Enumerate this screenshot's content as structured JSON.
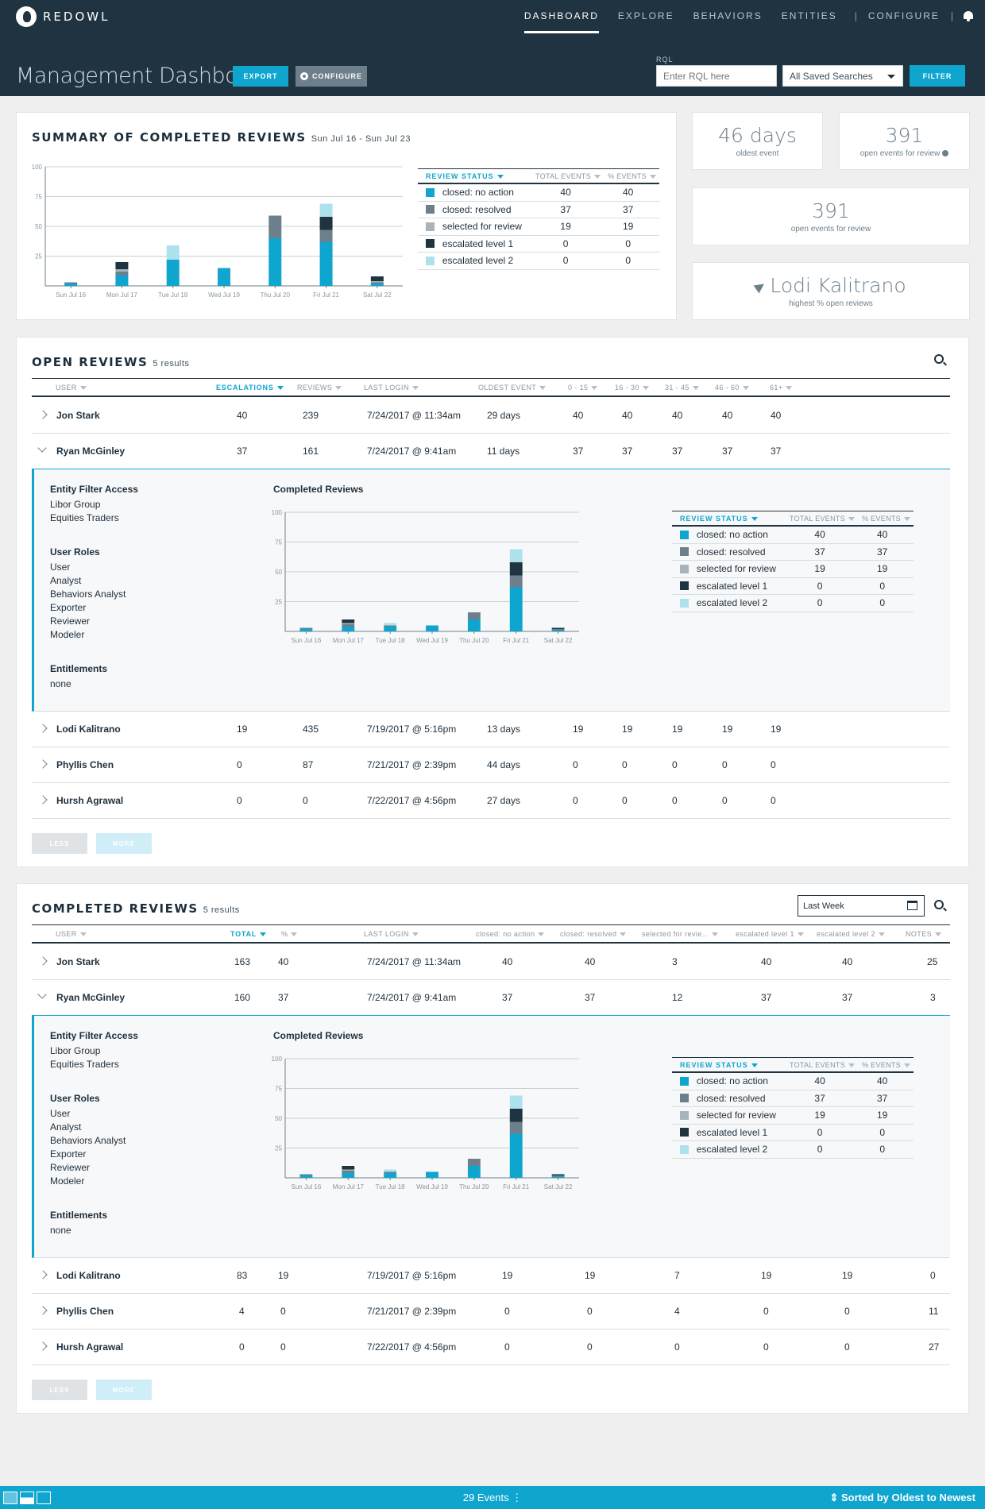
{
  "app": {
    "logo_text": "REDOWL"
  },
  "nav": {
    "dashboard": "DASHBOARD",
    "explore": "EXPLORE",
    "behaviors": "BEHAVIORS",
    "entities": "ENTITIES",
    "separator": "|",
    "configure": "CONFIGURE"
  },
  "header": {
    "title": "Management Dashboard",
    "export_label": "EXPORT",
    "configure_label": "CONFIGURE",
    "rql_label": "RQL",
    "rql_placeholder": "Enter RQL here",
    "saved_searches": "All Saved Searches",
    "filter_label": "FILTER"
  },
  "colors": {
    "brand": "#1f3340",
    "accent": "#0ea5cf"
  },
  "summary": {
    "title": "SUMMARY OF COMPLETED REVIEWS",
    "range": "Sun Jul 16 - Sun Jul 23"
  },
  "stats": {
    "oldest_value": "46 days",
    "oldest_label": "oldest event",
    "open_value": "391",
    "open_label": "open events for review",
    "open2_value": "391",
    "open2_label": "open events for review",
    "top_user": "Lodi Kalitrano",
    "top_user_label": "highest % open reviews"
  },
  "legend": {
    "headers": {
      "status": "REVIEW STATUS",
      "total": "TOTAL EVENTS",
      "pct": "% EVENTS"
    },
    "rows": [
      {
        "label": "closed: no action",
        "total": "40",
        "pct": "40",
        "color": "#0ea5cf"
      },
      {
        "label": "closed: resolved",
        "total": "37",
        "pct": "37",
        "color": "#6d7f8b"
      },
      {
        "label": "selected for review",
        "total": "19",
        "pct": "19",
        "color": "#a9b3ba"
      },
      {
        "label": "escalated level 1",
        "total": "0",
        "pct": "0",
        "color": "#1f3340"
      },
      {
        "label": "escalated level 2",
        "total": "0",
        "pct": "0",
        "color": "#aee1ee"
      }
    ]
  },
  "chart_data": [
    {
      "type": "bar",
      "stacked": true,
      "title": "",
      "categories": [
        "Sun Jul 16",
        "Mon Jul 17",
        "Tue Jul 18",
        "Wed Jul 19",
        "Thu Jul 20",
        "Fri Jul 21",
        "Sat Jul 22"
      ],
      "ylim": [
        0,
        100
      ],
      "yticks": [
        "100",
        "75",
        "50",
        "25"
      ],
      "series": [
        {
          "name": "closed: no action",
          "color": "#0ea5cf",
          "values": [
            2,
            9,
            22,
            15,
            40,
            37,
            2
          ]
        },
        {
          "name": "closed: resolved",
          "color": "#6d7f8b",
          "values": [
            1,
            3,
            0,
            0,
            19,
            10,
            1
          ]
        },
        {
          "name": "selected for review",
          "color": "#a9b3ba",
          "values": [
            0,
            2,
            0,
            0,
            0,
            0,
            1
          ]
        },
        {
          "name": "escalated level 1",
          "color": "#1f3340",
          "values": [
            0,
            6,
            0,
            0,
            0,
            11,
            4
          ]
        },
        {
          "name": "escalated level 2",
          "color": "#aee1ee",
          "values": [
            0,
            0,
            12,
            0,
            0,
            11,
            0
          ]
        }
      ]
    },
    {
      "type": "bar",
      "stacked": true,
      "title": "Completed Reviews",
      "categories": [
        "Sun Jul 16",
        "Mon Jul 17",
        "Tue Jul 18",
        "Wed Jul 19",
        "Thu Jul 20",
        "Fri Jul 21",
        "Sat Jul 22"
      ],
      "ylim": [
        0,
        100
      ],
      "yticks": [
        "100",
        "75",
        "50",
        "25"
      ],
      "series": [
        {
          "name": "closed: no action",
          "color": "#0ea5cf",
          "values": [
            2,
            4,
            4,
            5,
            10,
            37,
            1
          ]
        },
        {
          "name": "closed: resolved",
          "color": "#6d7f8b",
          "values": [
            1,
            2,
            1,
            0,
            6,
            10,
            1
          ]
        },
        {
          "name": "selected for review",
          "color": "#a9b3ba",
          "values": [
            0,
            1,
            0,
            0,
            0,
            0,
            0
          ]
        },
        {
          "name": "escalated level 1",
          "color": "#1f3340",
          "values": [
            0,
            3,
            0,
            0,
            0,
            11,
            1
          ]
        },
        {
          "name": "escalated level 2",
          "color": "#aee1ee",
          "values": [
            0,
            0,
            2,
            0,
            0,
            11,
            0
          ]
        }
      ]
    },
    {
      "type": "bar",
      "stacked": true,
      "title": "Completed Reviews",
      "categories": [
        "Sun Jul 16",
        "Mon Jul 17",
        "Tue Jul 18",
        "Wed Jul 19",
        "Thu Jul 20",
        "Fri Jul 21",
        "Sat Jul 22"
      ],
      "ylim": [
        0,
        100
      ],
      "yticks": [
        "100",
        "75",
        "50",
        "25"
      ],
      "series": [
        {
          "name": "closed: no action",
          "color": "#0ea5cf",
          "values": [
            2,
            4,
            4,
            5,
            10,
            37,
            1
          ]
        },
        {
          "name": "closed: resolved",
          "color": "#6d7f8b",
          "values": [
            1,
            2,
            1,
            0,
            6,
            10,
            1
          ]
        },
        {
          "name": "selected for review",
          "color": "#a9b3ba",
          "values": [
            0,
            1,
            0,
            0,
            0,
            0,
            0
          ]
        },
        {
          "name": "escalated level 1",
          "color": "#1f3340",
          "values": [
            0,
            3,
            0,
            0,
            0,
            11,
            1
          ]
        },
        {
          "name": "escalated level 2",
          "color": "#aee1ee",
          "values": [
            0,
            0,
            2,
            0,
            0,
            11,
            0
          ]
        }
      ]
    }
  ],
  "open_reviews": {
    "title": "OPEN REVIEWS",
    "count": "5 results",
    "headers": [
      "USER",
      "ESCALATIONS",
      "REVIEWS",
      "LAST LOGIN",
      "OLDEST EVENT",
      "0 - 15",
      "16 - 30",
      "31 - 45",
      "46 - 60",
      "61+"
    ],
    "rows": [
      [
        "Jon Stark",
        "40",
        "239",
        "7/24/2017 @ 11:34am",
        "29 days",
        "40",
        "40",
        "40",
        "40",
        "40"
      ],
      [
        "Ryan McGinley",
        "37",
        "161",
        "7/24/2017 @ 9:41am",
        "11 days",
        "37",
        "37",
        "37",
        "37",
        "37"
      ],
      [
        "Lodi Kalitrano",
        "19",
        "435",
        "7/19/2017 @ 5:16pm",
        "13 days",
        "19",
        "19",
        "19",
        "19",
        "19"
      ],
      [
        "Phyllis Chen",
        "0",
        "87",
        "7/21/2017 @ 2:39pm",
        "44 days",
        "0",
        "0",
        "0",
        "0",
        "0"
      ],
      [
        "Hursh Agrawal",
        "0",
        "0",
        "7/22/2017 @ 4:56pm",
        "27 days",
        "0",
        "0",
        "0",
        "0",
        "0"
      ]
    ],
    "less_label": "LESS",
    "more_label": "MORE"
  },
  "detail": {
    "efa_title": "Entity Filter Access",
    "efa": [
      "Libor Group",
      "Equities Traders"
    ],
    "roles_title": "User Roles",
    "roles": [
      "User",
      "Analyst",
      "Behaviors Analyst",
      "Exporter",
      "Reviewer",
      "Modeler"
    ],
    "ent_title": "Entitlements",
    "ent": "none",
    "chart_title": "Completed Reviews"
  },
  "completed_reviews": {
    "title": "COMPLETED REVIEWS",
    "count": "5 results",
    "date_range": "Last Week",
    "headers": [
      "USER",
      "TOTAL",
      "%",
      "LAST LOGIN",
      "closed: no action",
      "closed: resolved",
      "selected for revie...",
      "escalated level 1",
      "escalated level 2",
      "NOTES"
    ],
    "rows": [
      [
        "Jon Stark",
        "163",
        "40",
        "7/24/2017 @ 11:34am",
        "40",
        "40",
        "3",
        "40",
        "40",
        "25"
      ],
      [
        "Ryan McGinley",
        "160",
        "37",
        "7/24/2017 @ 9:41am",
        "37",
        "37",
        "12",
        "37",
        "37",
        "3"
      ],
      [
        "Lodi Kalitrano",
        "83",
        "19",
        "7/19/2017 @ 5:16pm",
        "19",
        "19",
        "7",
        "19",
        "19",
        "0"
      ],
      [
        "Phyllis Chen",
        "4",
        "0",
        "7/21/2017 @ 2:39pm",
        "0",
        "0",
        "4",
        "0",
        "0",
        "11"
      ],
      [
        "Hursh Agrawal",
        "0",
        "0",
        "7/22/2017 @ 4:56pm",
        "0",
        "0",
        "0",
        "0",
        "0",
        "27"
      ]
    ],
    "less_label": "LESS",
    "more_label": "MORE"
  },
  "footer": {
    "events": "29 Events",
    "sort": "Sorted by Oldest to Newest"
  }
}
